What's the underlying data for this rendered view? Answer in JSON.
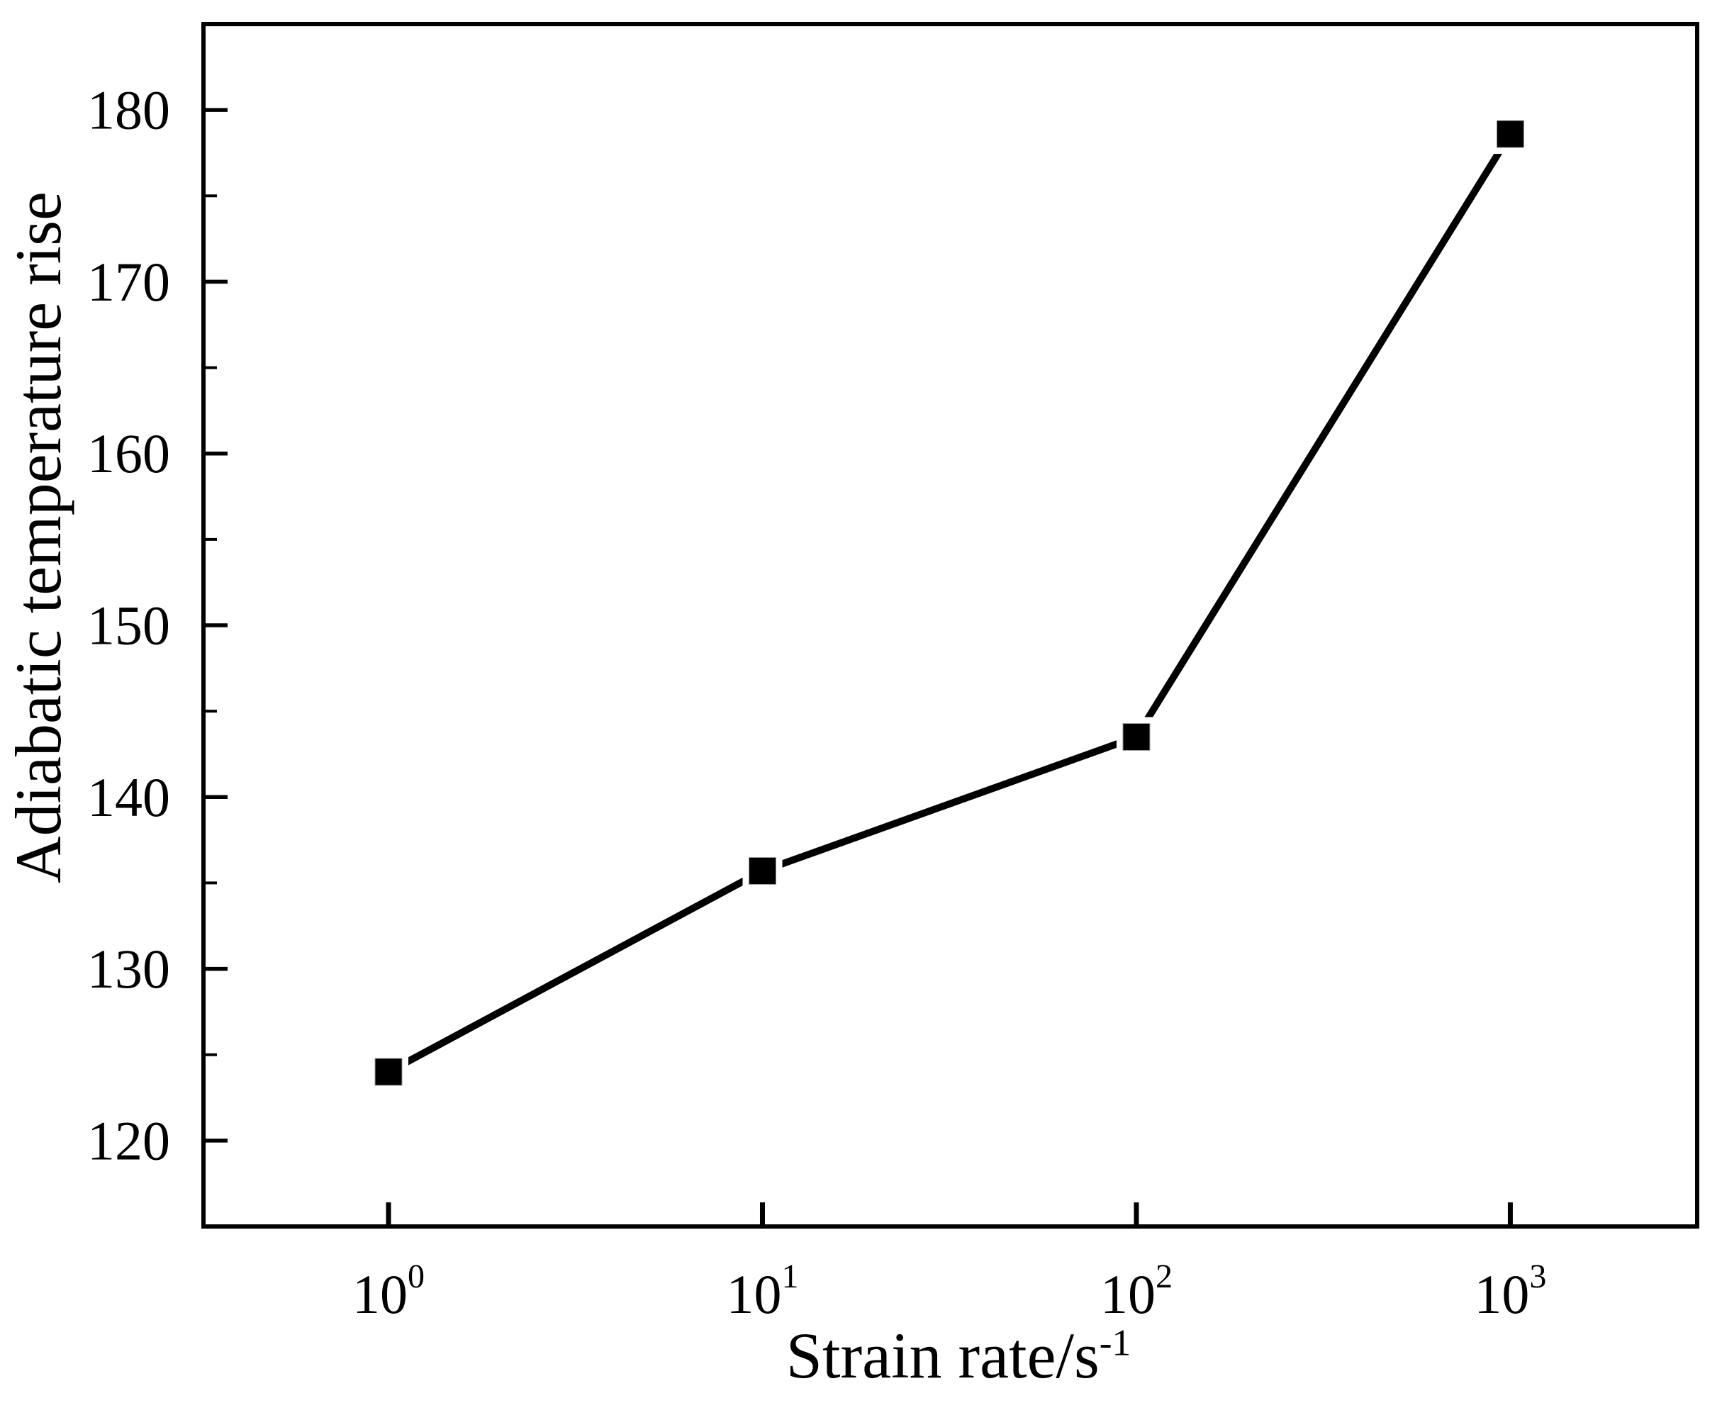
{
  "chart_data": {
    "type": "line",
    "title": "",
    "xlabel": {
      "text": "Strain rate/s",
      "sup": "-1"
    },
    "ylabel": "Adiabatic temperature rise",
    "x_scale": "log",
    "x_range": [
      0.32,
      3160
    ],
    "y_range": [
      115,
      185
    ],
    "x": [
      1,
      10,
      100,
      1000
    ],
    "series": [
      {
        "name": "Adiabatic temperature rise",
        "marker": "filled-square",
        "values": [
          124,
          135.7,
          143.5,
          178.6
        ]
      }
    ],
    "y_ticks_major": [
      120,
      130,
      140,
      150,
      160,
      170,
      180
    ],
    "y_ticks_minor": [
      125,
      135,
      145,
      155,
      165,
      175
    ],
    "x_ticks": [
      {
        "value": 1,
        "base": "10",
        "exp": "0"
      },
      {
        "value": 10,
        "base": "10",
        "exp": "1"
      },
      {
        "value": 100,
        "base": "10",
        "exp": "2"
      },
      {
        "value": 1000,
        "base": "10",
        "exp": "3"
      }
    ],
    "grid": false,
    "legend": "none",
    "colors": {
      "background": "#ffffff",
      "axis": "#000000",
      "line": "#000000",
      "marker": "#000000",
      "text": "#000000"
    }
  }
}
